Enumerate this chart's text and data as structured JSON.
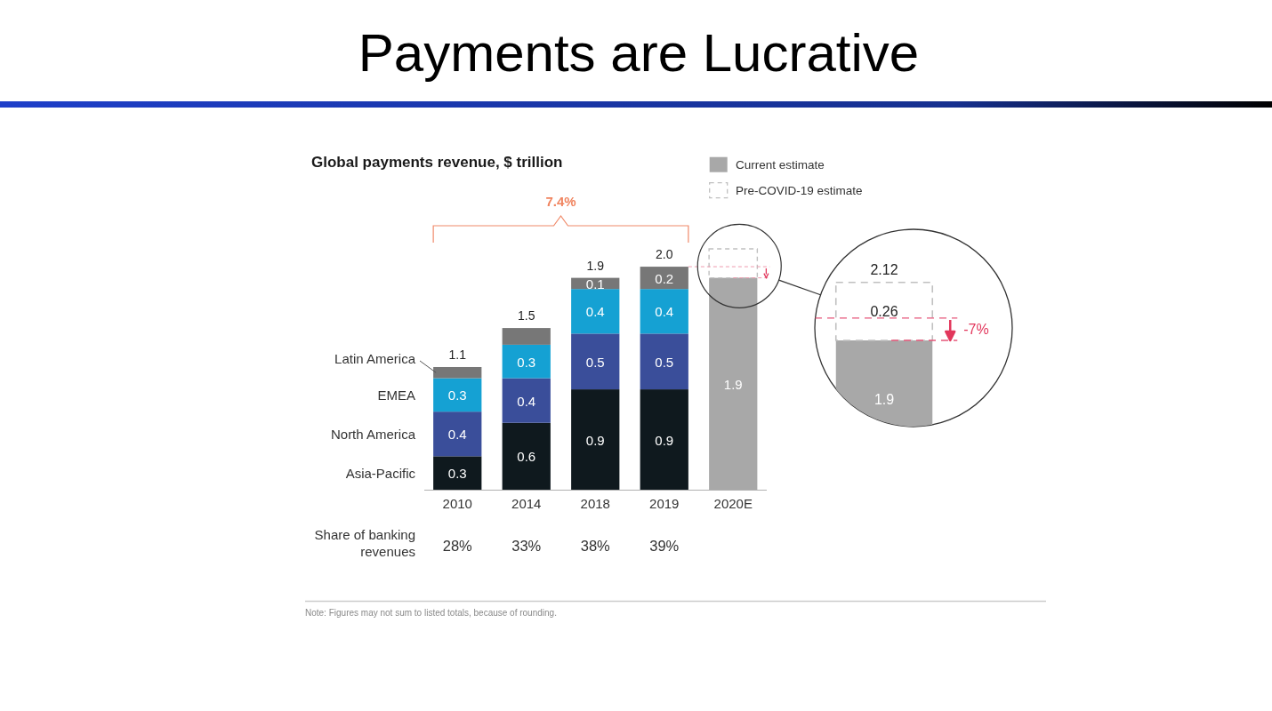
{
  "chart_data": {
    "type": "bar",
    "title": "Payments are Lucrative",
    "subtitle": "Global payments revenue, $ trillion",
    "categories": [
      "2010",
      "2014",
      "2018",
      "2019",
      "2020E"
    ],
    "stacked": true,
    "series": [
      {
        "name": "Asia-Pacific",
        "color": "#0f191e",
        "values": [
          0.3,
          0.6,
          0.9,
          0.9,
          null
        ],
        "value_labels": [
          "0.3",
          "0.6",
          "0.9",
          "0.9",
          null
        ]
      },
      {
        "name": "North America",
        "color": "#3a4e9a",
        "values": [
          0.4,
          0.4,
          0.5,
          0.5,
          null
        ],
        "value_labels": [
          "0.4",
          "0.4",
          "0.5",
          "0.5",
          null
        ]
      },
      {
        "name": "EMEA",
        "color": "#15a1d3",
        "values": [
          0.3,
          0.3,
          0.4,
          0.4,
          null
        ],
        "value_labels": [
          "0.3",
          "0.3",
          "0.4",
          "0.4",
          null
        ]
      },
      {
        "name": "Latin America",
        "color": "#777777",
        "values": [
          0.1,
          0.15,
          0.1,
          0.2,
          null
        ],
        "value_labels": [
          null,
          null,
          "0.1",
          "0.2",
          null
        ]
      },
      {
        "name": "Current estimate",
        "color": "#a8a8a8",
        "values": [
          null,
          null,
          null,
          null,
          1.9
        ],
        "value_labels": [
          null,
          null,
          null,
          null,
          "1.9"
        ]
      },
      {
        "name": "Pre-COVID-19 estimate",
        "color": "#c0c0c0",
        "line_style": "dashed",
        "values": [
          null,
          null,
          null,
          null,
          0.26
        ]
      }
    ],
    "totals": [
      "1.1",
      "1.5",
      "1.9",
      "2.0",
      null
    ],
    "legend": "top right",
    "annotations": [
      "7.4%",
      "Share of banking revenues",
      "28%",
      "33%",
      "38%",
      "39%",
      "2.12",
      "0.26",
      "-7%",
      "Note: Figures may not sum to listed totals, because of rounding."
    ]
  }
}
